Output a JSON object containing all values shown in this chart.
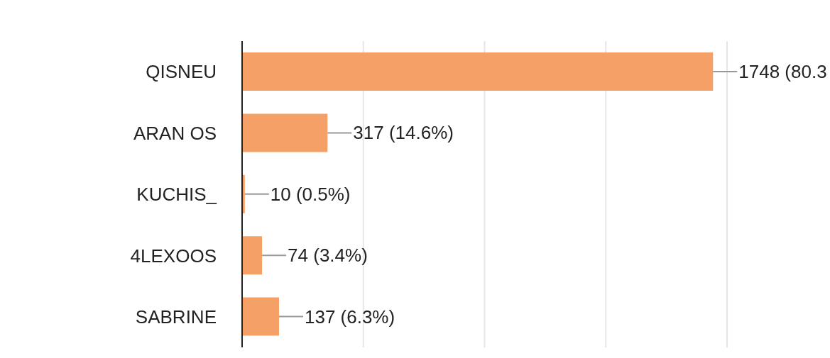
{
  "chart_data": {
    "type": "bar",
    "orientation": "horizontal",
    "categories": [
      "QISNEU",
      "ARAN OS",
      "KUCHIS_",
      "4LEXOOS",
      "SABRINE"
    ],
    "values": [
      1748,
      317,
      10,
      74,
      137
    ],
    "value_labels": [
      "1748 (80.3",
      "317 (14.6%)",
      "10 (0.5%)",
      "74 (3.4%)",
      "137 (6.3%)"
    ],
    "color": "#f5a066",
    "grid": "x",
    "tick_labels": "y"
  }
}
